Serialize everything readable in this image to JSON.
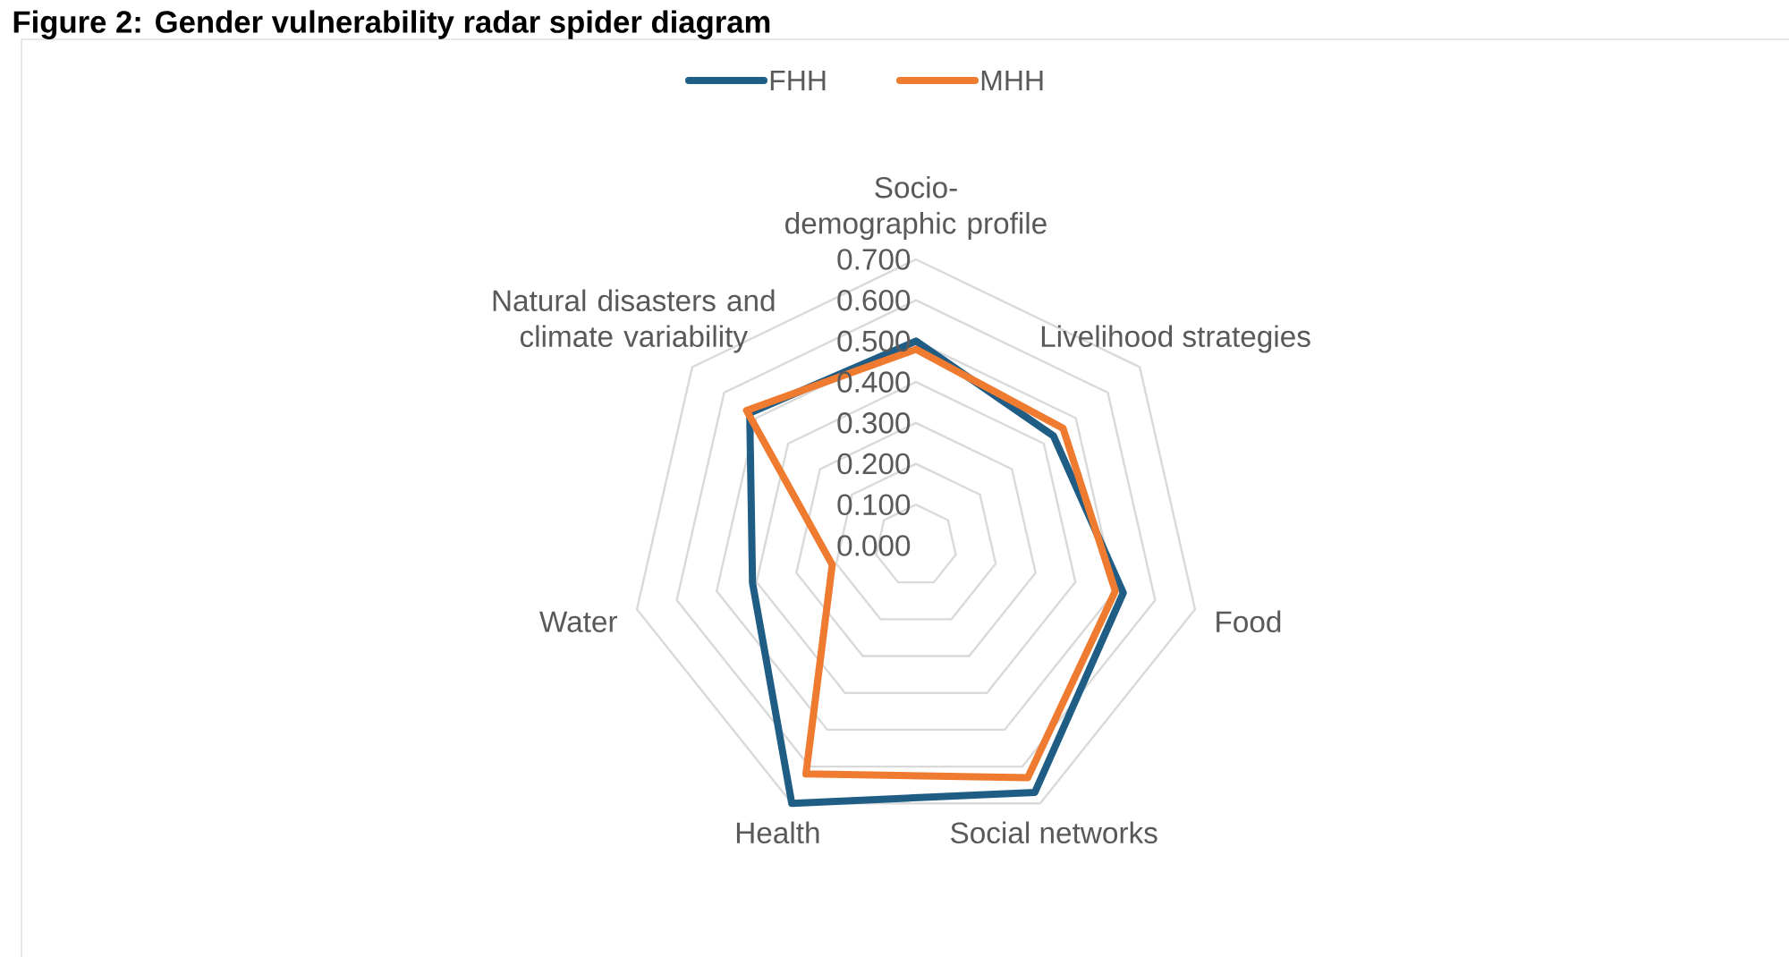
{
  "chart_data": {
    "type": "radar",
    "title": "Figure 2: Gender vulnerability radar spider diagram",
    "categories": [
      "Socio-demographic profile",
      "Livelihood strategies",
      "Food",
      "Social networks",
      "Health",
      "Water",
      "Natural disasters and climate variability"
    ],
    "series": [
      {
        "name": "FHH",
        "color": "#1f5d85",
        "values": [
          0.5,
          0.43,
          0.52,
          0.67,
          0.7,
          0.41,
          0.52
        ]
      },
      {
        "name": "MHH",
        "color": "#ee7b30",
        "values": [
          0.48,
          0.46,
          0.5,
          0.63,
          0.62,
          0.21,
          0.53
        ]
      }
    ],
    "ylim": [
      0,
      0.7
    ],
    "yticks": [
      {
        "value": 0,
        "label": "0.000"
      },
      {
        "value": 0.1,
        "label": "0.100"
      },
      {
        "value": 0.2,
        "label": "0.200"
      },
      {
        "value": 0.3,
        "label": "0.300"
      },
      {
        "value": 0.4,
        "label": "0.400"
      },
      {
        "value": 0.5,
        "label": "0.500"
      },
      {
        "value": 0.6,
        "label": "0.600"
      },
      {
        "value": 0.7,
        "label": "0.700"
      }
    ],
    "grid": true,
    "legend": "top"
  }
}
